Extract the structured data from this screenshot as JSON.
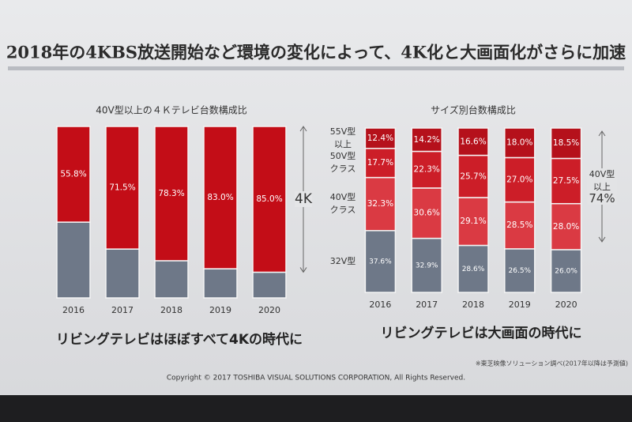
{
  "title": "2018年の4KBS放送開始など環境の変化によって、4K化と大画面化がさらに加速",
  "chart_data": [
    {
      "type": "stacked_bar",
      "title": "40V型以上の４Ｋテレビ台数構成比",
      "categories": [
        "2016",
        "2017",
        "2018",
        "2019",
        "2020"
      ],
      "series": [
        {
          "color": "#6e7888",
          "values": [
            44.2,
            28.5,
            21.7,
            17.0,
            15.0
          ]
        },
        {
          "name": "4K",
          "color": "#c30d17",
          "values": [
            55.8,
            71.5,
            78.3,
            83.0,
            85.0
          ],
          "value_labels": [
            "55.8%",
            "71.5%",
            "78.3%",
            "83.0%",
            "85.0%"
          ]
        }
      ],
      "ylim": [
        0,
        100
      ],
      "legend": "right",
      "caption": "リビングテレビはほぼすべて4Kの時代に"
    },
    {
      "type": "stacked_bar",
      "title": "サイズ別台数構成比",
      "categories": [
        "2016",
        "2017",
        "2018",
        "2019",
        "2020"
      ],
      "series": [
        {
          "name": "32V型",
          "color": "#6e7888",
          "values": [
            37.6,
            32.9,
            28.6,
            26.5,
            26.0
          ],
          "value_labels": [
            "37.6%",
            "32.9%",
            "28.6%",
            "26.5%",
            "26.0%"
          ]
        },
        {
          "name": "40V型\nクラス",
          "color": "#da3a43",
          "values": [
            32.3,
            30.6,
            29.1,
            28.5,
            28.0
          ],
          "value_labels": [
            "32.3%",
            "30.6%",
            "29.1%",
            "28.5%",
            "28.0%"
          ]
        },
        {
          "name": "50V型\nクラス",
          "color": "#cc1e28",
          "values": [
            17.7,
            22.3,
            25.7,
            27.0,
            27.5
          ],
          "value_labels": [
            "17.7%",
            "22.3%",
            "25.7%",
            "27.0%",
            "27.5%"
          ]
        },
        {
          "name": "55V型\n以上",
          "color": "#b5111b",
          "values": [
            12.4,
            14.2,
            16.6,
            18.0,
            18.5
          ],
          "value_labels": [
            "12.4%",
            "14.2%",
            "16.6%",
            "18.0%",
            "18.5%"
          ]
        }
      ],
      "ylim": [
        0,
        100
      ],
      "legend": "left",
      "annotations": [
        "40V型以上",
        "74%"
      ],
      "caption": "リビングテレビは大画面の時代に"
    }
  ],
  "note": "※東芝映像ソリューション調べ(2017年以降は予測値)",
  "copyright": "Copyright © 2017 TOSHIBA VISUAL SOLUTIONS CORPORATION, All Rights Reserved."
}
